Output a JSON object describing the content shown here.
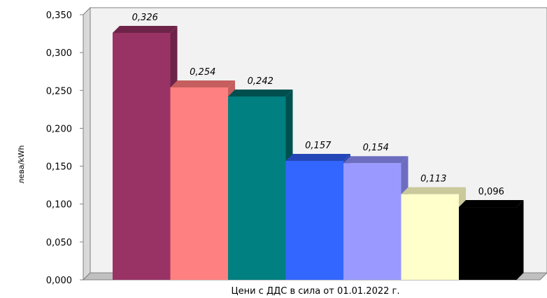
{
  "chart_data": {
    "type": "bar",
    "title": "",
    "xlabel": "Цени с ДДС в сила от 01.01.2022 г.",
    "ylabel": "лева/kWh",
    "ylim": [
      0,
      0.35
    ],
    "yticks": [
      "0,000",
      "0,050",
      "0,100",
      "0,150",
      "0,200",
      "0,250",
      "0,300",
      "0,350"
    ],
    "grid": false,
    "legend": "none",
    "style": "3d",
    "values": [
      0.326,
      0.254,
      0.242,
      0.157,
      0.154,
      0.113,
      0.096
    ],
    "value_labels": [
      "0,326",
      "0,254",
      "0,242",
      "0,157",
      "0,154",
      "0,113",
      "0,096"
    ],
    "value_label_italic": [
      true,
      true,
      true,
      true,
      true,
      true,
      false
    ],
    "colors": [
      "#993366",
      "#ff8080",
      "#008080",
      "#3366ff",
      "#9999ff",
      "#ffffcc",
      "#000000"
    ],
    "top_colors": [
      "#6e2348",
      "#c55e5e",
      "#004f4f",
      "#2447b8",
      "#6d6dc0",
      "#c9c99c",
      "#000000"
    ],
    "side_colors": [
      "#6e2348",
      "#c55e5e",
      "#004f4f",
      "#2447b8",
      "#6d6dc0",
      "#c9c99c",
      "#000000"
    ],
    "plot_background": "#f2f2f2",
    "floor_color": "#c0c0c0"
  }
}
